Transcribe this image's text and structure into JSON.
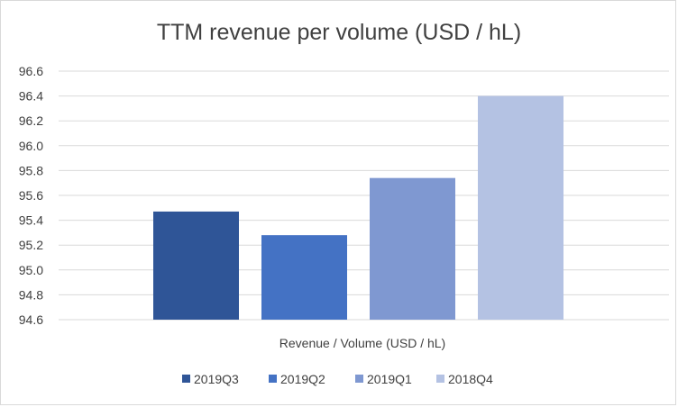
{
  "chart_data": {
    "type": "bar",
    "title": "TTM revenue per volume (USD / hL)",
    "xlabel": "Revenue / Volume (USD / hL)",
    "ylabel": "",
    "ylim": [
      94.6,
      96.6
    ],
    "yticks": [
      "96.6",
      "96.4",
      "96.2",
      "96.0",
      "95.8",
      "95.6",
      "95.4",
      "95.2",
      "95.0",
      "94.8",
      "94.6"
    ],
    "grid": true,
    "legend_position": "bottom",
    "series": [
      {
        "name": "2019Q3",
        "value": 95.47,
        "color": "#2f5597"
      },
      {
        "name": "2019Q2",
        "value": 95.28,
        "color": "#4472c4"
      },
      {
        "name": "2019Q1",
        "value": 95.74,
        "color": "#7f98d1"
      },
      {
        "name": "2018Q4",
        "value": 96.4,
        "color": "#b4c2e3"
      }
    ]
  }
}
